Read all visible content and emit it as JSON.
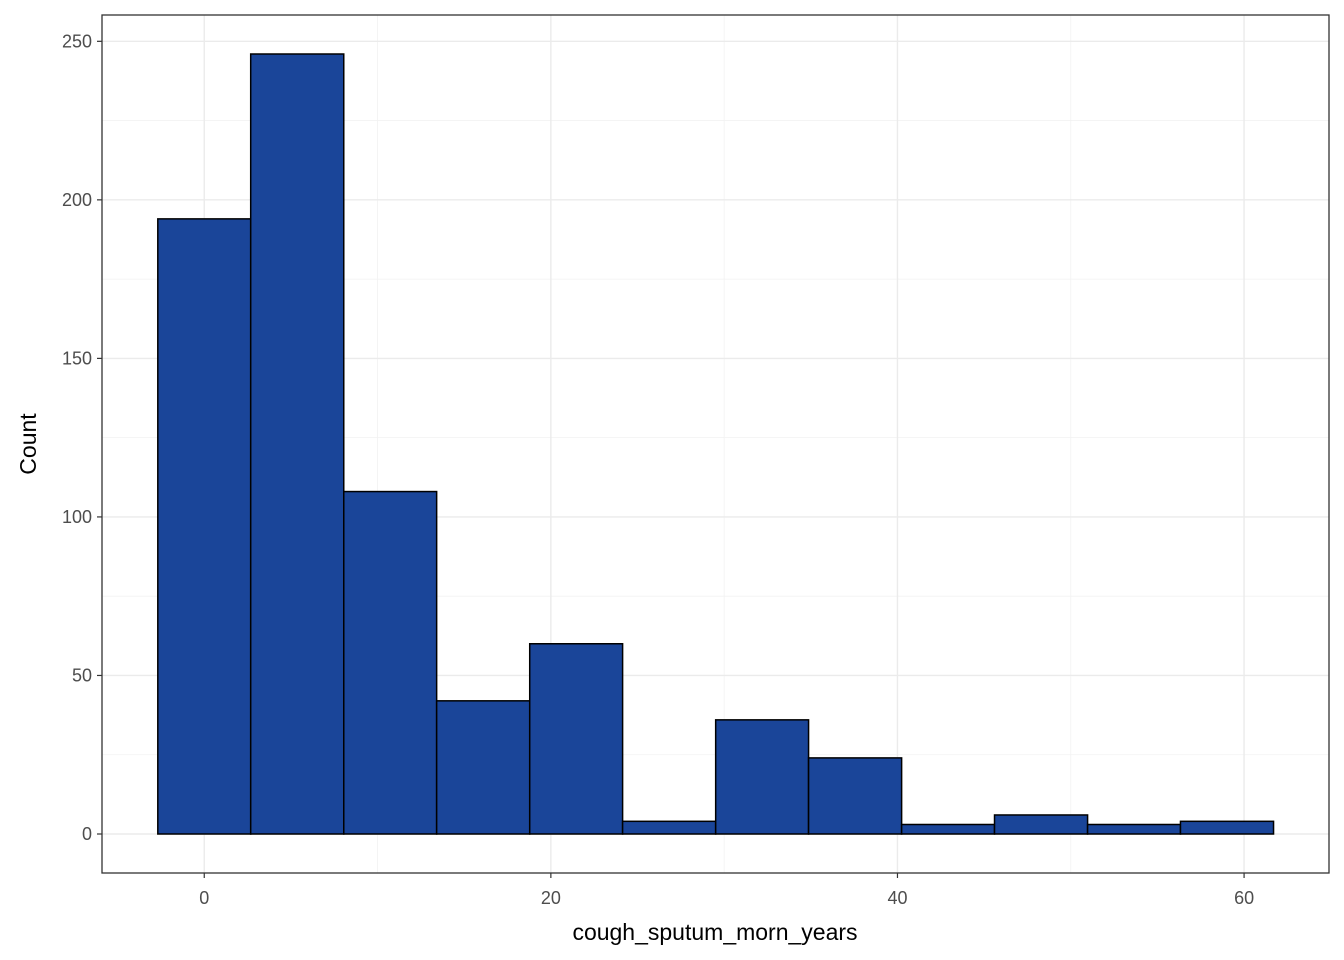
{
  "chart_data": {
    "type": "bar",
    "subtype": "histogram",
    "xlabel": "cough_sputum_morn_years",
    "ylabel": "Count",
    "xlim": [
      -5.9,
      64.9
    ],
    "ylim": [
      -12.3,
      258.3
    ],
    "x_ticks": [
      0,
      20,
      40,
      60
    ],
    "y_ticks": [
      0,
      50,
      100,
      150,
      200,
      250
    ],
    "x_tick_labels": [
      "0",
      "20",
      "40",
      "60"
    ],
    "y_tick_labels": [
      "0",
      "50",
      "100",
      "150",
      "200",
      "250"
    ],
    "bins": [
      {
        "x0": -2.68,
        "x1": 2.68,
        "count": 194
      },
      {
        "x0": 2.68,
        "x1": 8.05,
        "count": 246
      },
      {
        "x0": 8.05,
        "x1": 13.41,
        "count": 108
      },
      {
        "x0": 13.41,
        "x1": 18.78,
        "count": 42
      },
      {
        "x0": 18.78,
        "x1": 24.14,
        "count": 60
      },
      {
        "x0": 24.14,
        "x1": 29.51,
        "count": 4
      },
      {
        "x0": 29.51,
        "x1": 34.87,
        "count": 36
      },
      {
        "x0": 34.87,
        "x1": 40.24,
        "count": 24
      },
      {
        "x0": 40.24,
        "x1": 45.6,
        "count": 3
      },
      {
        "x0": 45.6,
        "x1": 50.97,
        "count": 6
      },
      {
        "x0": 50.97,
        "x1": 56.33,
        "count": 3
      },
      {
        "x0": 56.33,
        "x1": 61.7,
        "count": 4
      }
    ],
    "fill_color": "#1a4599",
    "outline_color": "#000000",
    "grid": true,
    "legend": "none"
  }
}
